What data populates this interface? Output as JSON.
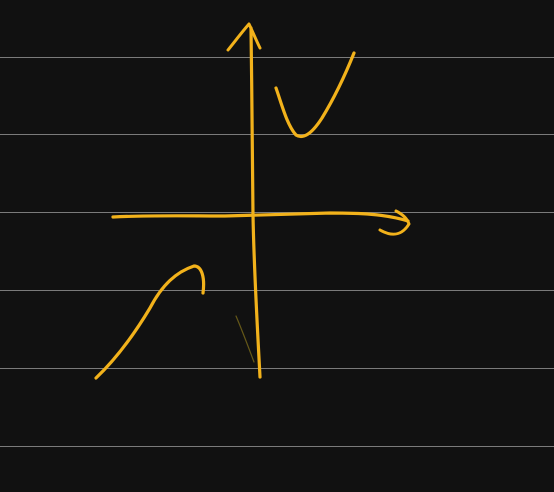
{
  "canvas": {
    "background_color": "#111111",
    "ruled_line_color": "#8e8e8e",
    "ruled_line_count": 6
  },
  "sketch": {
    "ink_color": "#f2b21b",
    "faint_ink_color": "#7a6a1a",
    "strokes": [
      "vertical-axis-with-arrow",
      "horizontal-axis-with-arrow",
      "upper-right-curve",
      "lower-left-curve"
    ]
  }
}
